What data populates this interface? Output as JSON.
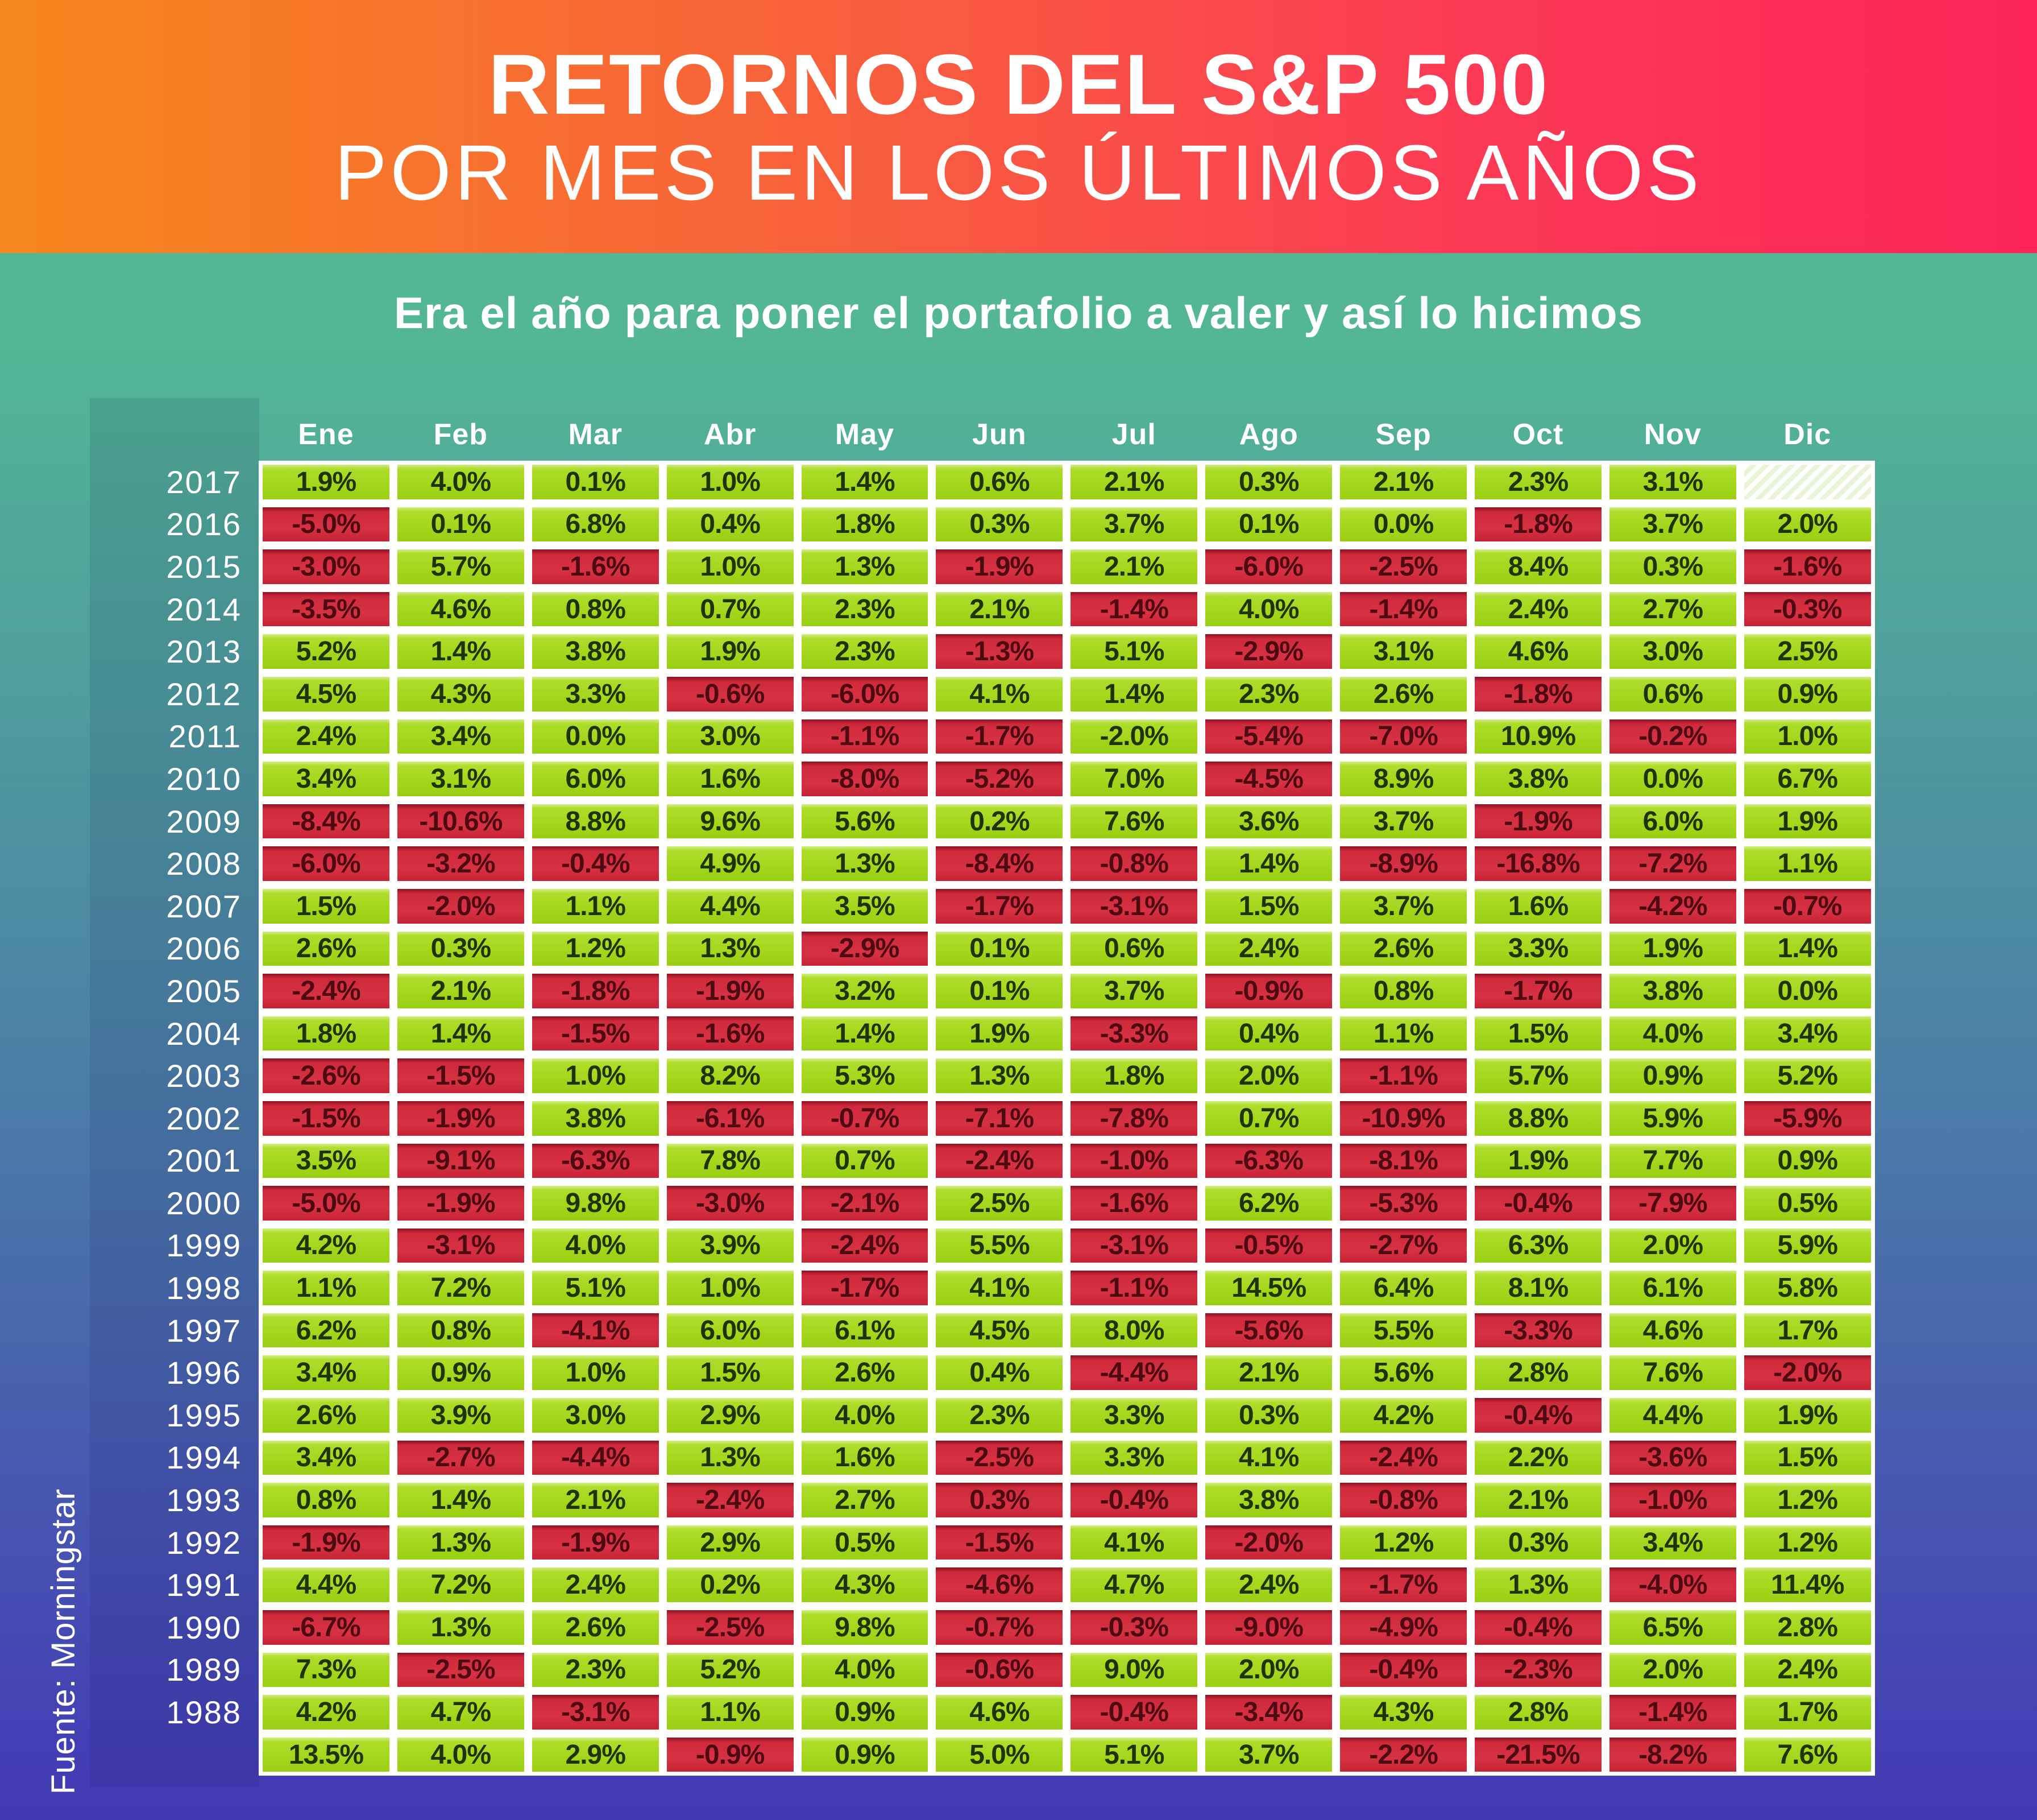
{
  "banner": {
    "title_line1": "RETORNOS DEL S&P 500",
    "title_line2": "POR MES EN LOS ÚLTIMOS AÑOS"
  },
  "subtitle": "Era el año para poner el portafolio a valer y así lo hicimos",
  "source": "Fuente: Morningstar",
  "colors": {
    "banner_gradient_left": "#f6871d",
    "banner_gradient_right": "#fc2459",
    "background_top_teal": "#53b795",
    "background_bottom_indigo": "#4338b5",
    "cell_positive_green": "#a3d61b",
    "cell_negative_red": "#d63243",
    "cell_border_white": "#ffffff",
    "text_white": "#ffffff"
  },
  "chart_data": {
    "type": "heatmap",
    "title": "RETORNOS DEL S&P 500 POR MES EN LOS ÚLTIMOS AÑOS",
    "unit": "%",
    "columns": [
      "Ene",
      "Feb",
      "Mar",
      "Abr",
      "May",
      "Jun",
      "Jul",
      "Ago",
      "Sep",
      "Oct",
      "Nov",
      "Dic"
    ],
    "rows": [
      {
        "year": "2017",
        "values": [
          1.9,
          4.0,
          0.1,
          1.0,
          1.4,
          0.6,
          2.1,
          0.3,
          2.1,
          2.3,
          3.1,
          null
        ]
      },
      {
        "year": "2016",
        "values": [
          -5.0,
          0.1,
          6.8,
          0.4,
          1.8,
          0.3,
          3.7,
          0.1,
          0.0,
          -1.8,
          3.7,
          2.0
        ]
      },
      {
        "year": "2015",
        "values": [
          -3.0,
          5.7,
          -1.6,
          1.0,
          1.3,
          -1.9,
          2.1,
          -6.0,
          -2.5,
          8.4,
          0.3,
          -1.6
        ]
      },
      {
        "year": "2014",
        "values": [
          -3.5,
          4.6,
          0.8,
          0.7,
          2.3,
          2.1,
          -1.4,
          4.0,
          -1.4,
          2.4,
          2.7,
          -0.3
        ]
      },
      {
        "year": "2013",
        "values": [
          5.2,
          1.4,
          3.8,
          1.9,
          2.3,
          -1.3,
          5.1,
          -2.9,
          3.1,
          4.6,
          3.0,
          2.5
        ]
      },
      {
        "year": "2012",
        "values": [
          4.5,
          4.3,
          3.3,
          -0.6,
          -6.0,
          4.1,
          1.4,
          2.3,
          2.6,
          -1.8,
          0.6,
          0.9
        ]
      },
      {
        "year": "2011",
        "values": [
          2.4,
          3.4,
          0.0,
          3.0,
          -1.1,
          -1.7,
          -2.0,
          -5.4,
          -7.0,
          10.9,
          -0.2,
          1.0
        ]
      },
      {
        "year": "2010",
        "values": [
          3.4,
          3.1,
          6.0,
          1.6,
          -8.0,
          -5.2,
          7.0,
          -4.5,
          8.9,
          3.8,
          0.0,
          6.7
        ]
      },
      {
        "year": "2009",
        "values": [
          -8.4,
          -10.6,
          8.8,
          9.6,
          5.6,
          0.2,
          7.6,
          3.6,
          3.7,
          -1.9,
          6.0,
          1.9
        ]
      },
      {
        "year": "2008",
        "values": [
          -6.0,
          -3.2,
          -0.4,
          4.9,
          1.3,
          -8.4,
          -0.8,
          1.4,
          -8.9,
          -16.8,
          -7.2,
          1.1
        ]
      },
      {
        "year": "2007",
        "values": [
          1.5,
          -2.0,
          1.1,
          4.4,
          3.5,
          -1.7,
          -3.1,
          1.5,
          3.7,
          1.6,
          -4.2,
          -0.7
        ]
      },
      {
        "year": "2006",
        "values": [
          2.6,
          0.3,
          1.2,
          1.3,
          -2.9,
          0.1,
          0.6,
          2.4,
          2.6,
          3.3,
          1.9,
          1.4
        ]
      },
      {
        "year": "2005",
        "values": [
          -2.4,
          2.1,
          -1.8,
          -1.9,
          3.2,
          0.1,
          3.7,
          -0.9,
          0.8,
          -1.7,
          3.8,
          0.0
        ]
      },
      {
        "year": "2004",
        "values": [
          1.8,
          1.4,
          -1.5,
          -1.6,
          1.4,
          1.9,
          -3.3,
          0.4,
          1.1,
          1.5,
          4.0,
          3.4
        ]
      },
      {
        "year": "2003",
        "values": [
          -2.6,
          -1.5,
          1.0,
          8.2,
          5.3,
          1.3,
          1.8,
          2.0,
          -1.1,
          5.7,
          0.9,
          5.2
        ]
      },
      {
        "year": "2002",
        "values": [
          -1.5,
          -1.9,
          3.8,
          -6.1,
          -0.7,
          -7.1,
          -7.8,
          0.7,
          -10.9,
          8.8,
          5.9,
          -5.9
        ]
      },
      {
        "year": "2001",
        "values": [
          3.5,
          -9.1,
          -6.3,
          7.8,
          0.7,
          -2.4,
          -1.0,
          -6.3,
          -8.1,
          1.9,
          7.7,
          0.9
        ]
      },
      {
        "year": "2000",
        "values": [
          -5.0,
          -1.9,
          9.8,
          -3.0,
          -2.1,
          2.5,
          -1.6,
          6.2,
          -5.3,
          -0.4,
          -7.9,
          0.5
        ]
      },
      {
        "year": "1999",
        "values": [
          4.2,
          -3.1,
          4.0,
          3.9,
          -2.4,
          5.5,
          -3.1,
          -0.5,
          -2.7,
          6.3,
          2.0,
          5.9
        ]
      },
      {
        "year": "1998",
        "values": [
          1.1,
          7.2,
          5.1,
          1.0,
          -1.7,
          4.1,
          -1.1,
          14.5,
          6.4,
          8.1,
          6.1,
          5.8
        ]
      },
      {
        "year": "1997",
        "values": [
          6.2,
          0.8,
          -4.1,
          6.0,
          6.1,
          4.5,
          8.0,
          -5.6,
          5.5,
          -3.3,
          4.6,
          1.7
        ]
      },
      {
        "year": "1996",
        "values": [
          3.4,
          0.9,
          1.0,
          1.5,
          2.6,
          0.4,
          -4.4,
          2.1,
          5.6,
          2.8,
          7.6,
          -2.0
        ]
      },
      {
        "year": "1995",
        "values": [
          2.6,
          3.9,
          3.0,
          2.9,
          4.0,
          2.3,
          3.3,
          0.3,
          4.2,
          -0.4,
          4.4,
          1.9
        ]
      },
      {
        "year": "1994",
        "values": [
          3.4,
          -2.7,
          -4.4,
          1.3,
          1.6,
          -2.5,
          3.3,
          4.1,
          -2.4,
          2.2,
          -3.6,
          1.5
        ]
      },
      {
        "year": "1993",
        "values": [
          0.8,
          1.4,
          2.1,
          -2.4,
          2.7,
          0.3,
          -0.4,
          3.8,
          -0.8,
          2.1,
          -1.0,
          1.2
        ]
      },
      {
        "year": "1992",
        "values": [
          -1.9,
          1.3,
          -1.9,
          2.9,
          0.5,
          -1.5,
          4.1,
          -2.0,
          1.2,
          0.3,
          3.4,
          1.2
        ]
      },
      {
        "year": "1991",
        "values": [
          4.4,
          7.2,
          2.4,
          0.2,
          4.3,
          -4.6,
          4.7,
          2.4,
          -1.7,
          1.3,
          -4.0,
          11.4
        ]
      },
      {
        "year": "1990",
        "values": [
          -6.7,
          1.3,
          2.6,
          -2.5,
          9.8,
          -0.7,
          -0.3,
          -9.0,
          -4.9,
          -0.4,
          6.5,
          2.8
        ]
      },
      {
        "year": "1989",
        "values": [
          7.3,
          -2.5,
          2.3,
          5.2,
          4.0,
          -0.6,
          9.0,
          2.0,
          -0.4,
          -2.3,
          2.0,
          2.4
        ]
      },
      {
        "year": "1988",
        "values": [
          4.2,
          4.7,
          -3.1,
          1.1,
          0.9,
          4.6,
          -0.4,
          -3.4,
          4.3,
          2.8,
          -1.4,
          1.7
        ]
      },
      {
        "year": "",
        "values": [
          13.5,
          4.0,
          2.9,
          -0.9,
          0.9,
          5.0,
          5.1,
          3.7,
          -2.2,
          -21.5,
          -8.2,
          7.6
        ]
      }
    ],
    "color_rule": "negative values shown red, zero or positive shown green, null shown as hatched empty cell",
    "color_overrides": [
      {
        "year": "2011",
        "month": "Jul",
        "color": "green"
      },
      {
        "year": "1993",
        "month": "Jun",
        "color": "red"
      }
    ],
    "legend_position": "none",
    "grid": false
  }
}
